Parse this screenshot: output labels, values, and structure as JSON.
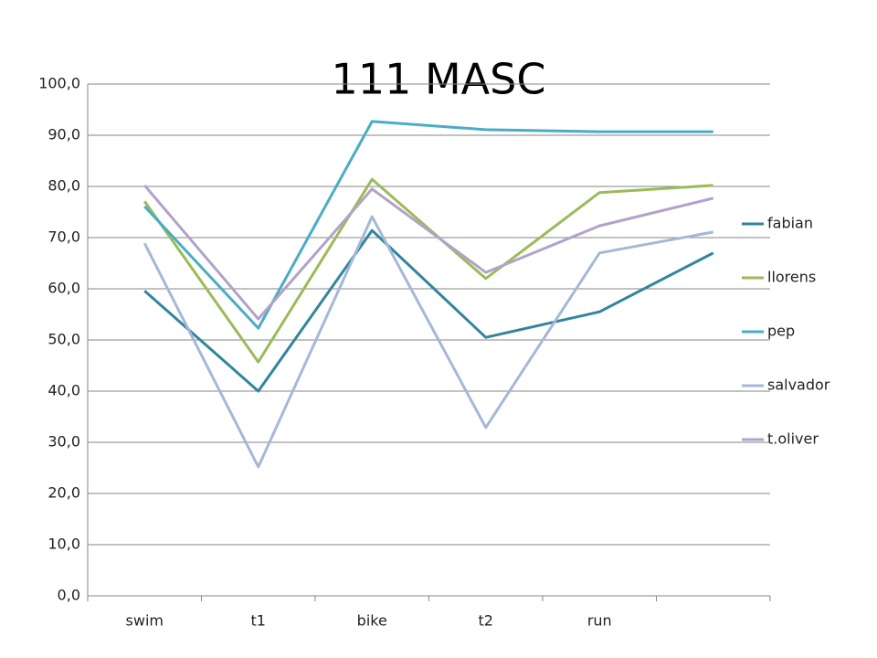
{
  "chart_data": {
    "type": "line",
    "title": "111 MASC",
    "categories": [
      "swim",
      "t1",
      "bike",
      "t2",
      "run",
      null
    ],
    "series": [
      {
        "name": "fabian",
        "color": "#31859c",
        "values": [
          59.6,
          40.0,
          71.4,
          50.5,
          55.5,
          67.0
        ]
      },
      {
        "name": "llorens",
        "color": "#9bbb59",
        "values": [
          77.1,
          45.7,
          81.4,
          62.0,
          78.8,
          80.2
        ]
      },
      {
        "name": "pep",
        "color": "#4bacc6",
        "values": [
          76.1,
          52.3,
          92.7,
          91.1,
          90.7,
          90.7
        ]
      },
      {
        "name": "salvador",
        "color": "#a5b8d6",
        "values": [
          68.9,
          25.2,
          74.1,
          32.9,
          67.0,
          71.1
        ]
      },
      {
        "name": "t.oliver",
        "color": "#b3a2c7",
        "values": [
          80.2,
          54.1,
          79.5,
          63.2,
          72.3,
          77.7
        ]
      }
    ],
    "ylim": [
      0,
      100
    ],
    "yticks": [
      {
        "value": 0,
        "label": "0,0"
      },
      {
        "value": 10,
        "label": "10,0"
      },
      {
        "value": 20,
        "label": "20,0"
      },
      {
        "value": 30,
        "label": "30,0"
      },
      {
        "value": 40,
        "label": "40,0"
      },
      {
        "value": 50,
        "label": "50,0"
      },
      {
        "value": 60,
        "label": "60,0"
      },
      {
        "value": 70,
        "label": "70,0"
      },
      {
        "value": 80,
        "label": "80,0"
      },
      {
        "value": 90,
        "label": "90,0"
      },
      {
        "value": 100,
        "label": "100,0"
      }
    ],
    "grid": true,
    "legend": "right"
  }
}
